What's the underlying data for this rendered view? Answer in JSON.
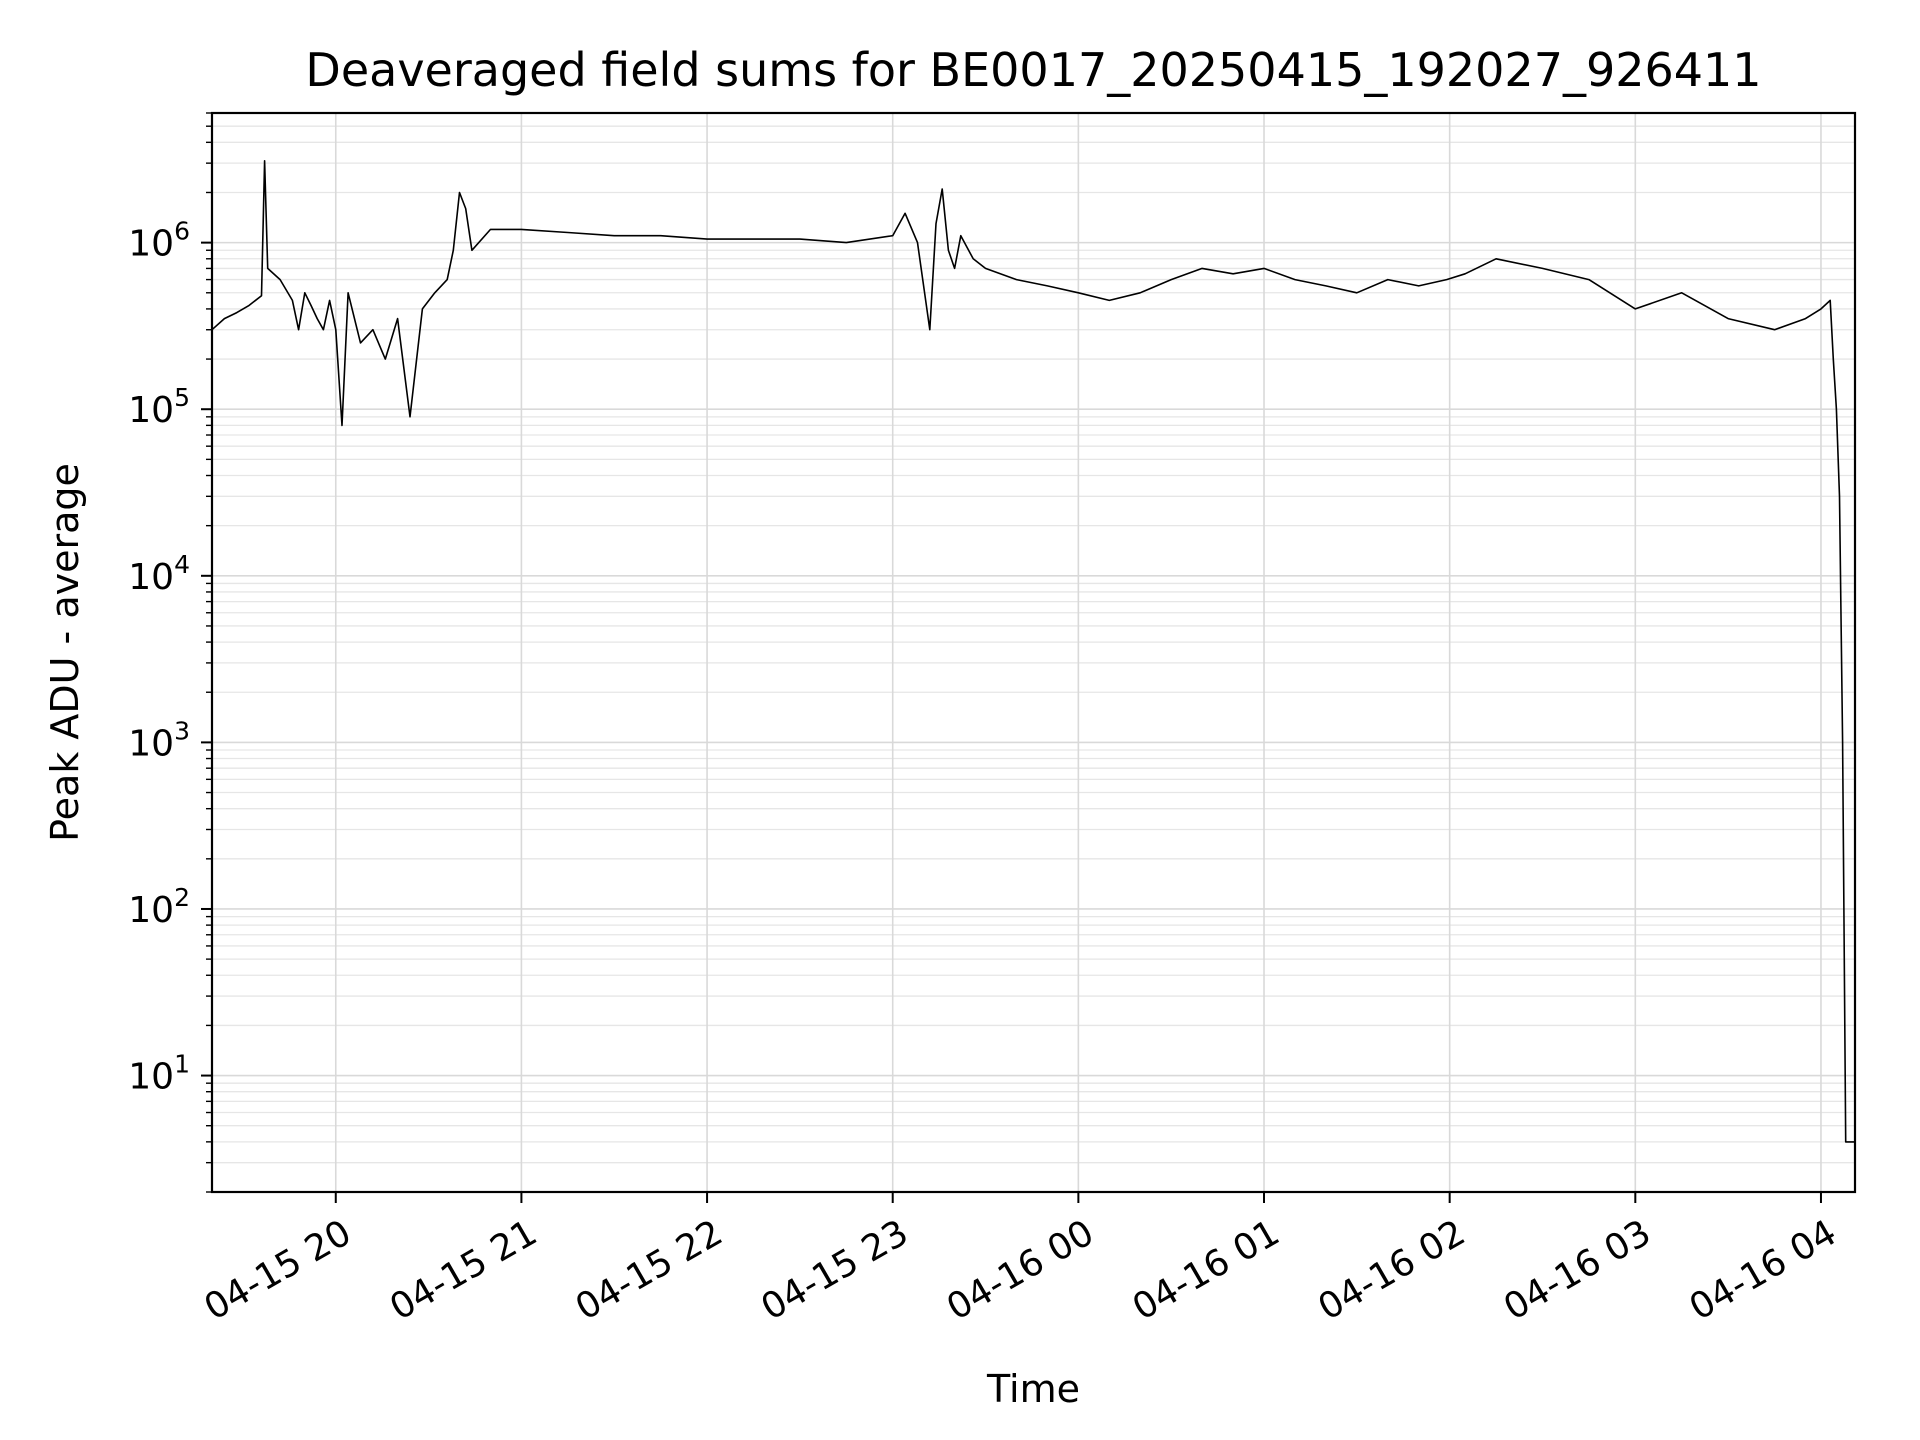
{
  "chart_data": {
    "type": "line",
    "title": "Deaveraged field sums for BE0017_20250415_192027_926411",
    "xlabel": "Time",
    "ylabel": "Peak ADU - average",
    "y_scale": "log",
    "ylim": [
      2,
      6000000
    ],
    "xlim": [
      "2025-04-15T19:20",
      "2025-04-16T04:11"
    ],
    "grid": true,
    "line_color": "#000000",
    "x_ticks": [
      "04-15 20",
      "04-15 21",
      "04-15 22",
      "04-15 23",
      "04-16 00",
      "04-16 01",
      "04-16 02",
      "04-16 03",
      "04-16 04"
    ],
    "y_ticks": [
      {
        "base": "10",
        "exp": "1"
      },
      {
        "base": "10",
        "exp": "2"
      },
      {
        "base": "10",
        "exp": "3"
      },
      {
        "base": "10",
        "exp": "4"
      },
      {
        "base": "10",
        "exp": "5"
      },
      {
        "base": "10",
        "exp": "6"
      }
    ],
    "series": [
      {
        "x": [
          "2025-04-15T19:20",
          "2025-04-15T19:24",
          "2025-04-15T19:28",
          "2025-04-15T19:32",
          "2025-04-15T19:36",
          "2025-04-15T19:37",
          "2025-04-15T19:38",
          "2025-04-15T19:42",
          "2025-04-15T19:46",
          "2025-04-15T19:48",
          "2025-04-15T19:50",
          "2025-04-15T19:52",
          "2025-04-15T19:54",
          "2025-04-15T19:56",
          "2025-04-15T19:58",
          "2025-04-15T20:00",
          "2025-04-15T20:02",
          "2025-04-15T20:04",
          "2025-04-15T20:08",
          "2025-04-15T20:12",
          "2025-04-15T20:16",
          "2025-04-15T20:20",
          "2025-04-15T20:24",
          "2025-04-15T20:28",
          "2025-04-15T20:32",
          "2025-04-15T20:36",
          "2025-04-15T20:38",
          "2025-04-15T20:40",
          "2025-04-15T20:42",
          "2025-04-15T20:44",
          "2025-04-15T20:50",
          "2025-04-15T21:00",
          "2025-04-15T21:15",
          "2025-04-15T21:30",
          "2025-04-15T21:45",
          "2025-04-15T22:00",
          "2025-04-15T22:15",
          "2025-04-15T22:30",
          "2025-04-15T22:45",
          "2025-04-15T23:00",
          "2025-04-15T23:04",
          "2025-04-15T23:08",
          "2025-04-15T23:12",
          "2025-04-15T23:14",
          "2025-04-15T23:16",
          "2025-04-15T23:18",
          "2025-04-15T23:20",
          "2025-04-15T23:22",
          "2025-04-15T23:26",
          "2025-04-15T23:30",
          "2025-04-15T23:40",
          "2025-04-15T23:50",
          "2025-04-16T00:00",
          "2025-04-16T00:10",
          "2025-04-16T00:20",
          "2025-04-16T00:30",
          "2025-04-16T00:40",
          "2025-04-16T00:50",
          "2025-04-16T01:00",
          "2025-04-16T01:10",
          "2025-04-16T01:20",
          "2025-04-16T01:30",
          "2025-04-16T01:40",
          "2025-04-16T01:50",
          "2025-04-16T01:59",
          "2025-04-16T02:05",
          "2025-04-16T02:15",
          "2025-04-16T02:30",
          "2025-04-16T02:45",
          "2025-04-16T03:00",
          "2025-04-16T03:15",
          "2025-04-16T03:30",
          "2025-04-16T03:45",
          "2025-04-16T03:55",
          "2025-04-16T04:00",
          "2025-04-16T04:03",
          "2025-04-16T04:04",
          "2025-04-16T04:05",
          "2025-04-16T04:06",
          "2025-04-16T04:07",
          "2025-04-16T04:08",
          "2025-04-16T04:11"
        ],
        "y": [
          300000,
          350000,
          380000,
          420000,
          480000,
          3100000,
          700000,
          600000,
          450000,
          300000,
          500000,
          420000,
          350000,
          300000,
          450000,
          300000,
          80000,
          500000,
          250000,
          300000,
          200000,
          350000,
          90000,
          400000,
          500000,
          600000,
          900000,
          2000000,
          1600000,
          900000,
          1200000,
          1200000,
          1150000,
          1100000,
          1100000,
          1050000,
          1050000,
          1050000,
          1000000,
          1100000,
          1500000,
          1000000,
          300000,
          1300000,
          2100000,
          900000,
          700000,
          1100000,
          800000,
          700000,
          600000,
          550000,
          500000,
          450000,
          500000,
          600000,
          700000,
          650000,
          700000,
          600000,
          550000,
          500000,
          600000,
          550000,
          600000,
          650000,
          800000,
          700000,
          600000,
          400000,
          500000,
          350000,
          300000,
          350000,
          400000,
          450000,
          200000,
          100000,
          30000,
          1000,
          4,
          4
        ]
      }
    ]
  }
}
